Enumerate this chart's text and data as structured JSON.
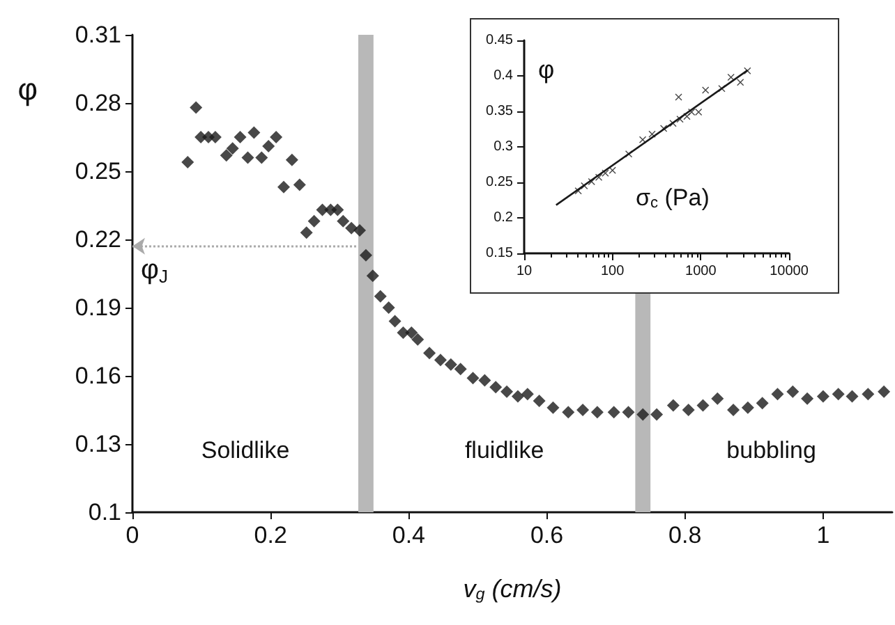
{
  "chart_data": [
    {
      "type": "scatter",
      "xlabel": "v$_{g}$ (cm/s)",
      "ylabel": "φ",
      "color": "#1a1a1a",
      "marker": "diamond",
      "x": [
        0.08,
        0.092,
        0.099,
        0.11,
        0.12,
        0.136,
        0.145,
        0.156,
        0.167,
        0.176,
        0.187,
        0.197,
        0.208,
        0.219,
        0.231,
        0.242,
        0.252,
        0.263,
        0.275,
        0.287,
        0.297,
        0.305,
        0.317,
        0.329,
        0.338,
        0.348,
        0.359,
        0.371,
        0.38,
        0.392,
        0.404,
        0.413,
        0.43,
        0.446,
        0.461,
        0.475,
        0.493,
        0.51,
        0.526,
        0.542,
        0.558,
        0.572,
        0.589,
        0.609,
        0.631,
        0.652,
        0.673,
        0.697,
        0.718,
        0.739,
        0.759,
        0.783,
        0.805,
        0.826,
        0.847,
        0.87,
        0.891,
        0.912,
        0.934,
        0.956,
        0.977,
        1.0,
        1.022,
        1.042,
        1.065,
        1.088
      ],
      "values": [
        0.254,
        0.278,
        0.265,
        0.265,
        0.265,
        0.257,
        0.26,
        0.265,
        0.256,
        0.267,
        0.256,
        0.261,
        0.265,
        0.243,
        0.255,
        0.244,
        0.223,
        0.228,
        0.233,
        0.233,
        0.233,
        0.228,
        0.225,
        0.224,
        0.213,
        0.204,
        0.195,
        0.19,
        0.184,
        0.179,
        0.179,
        0.176,
        0.17,
        0.167,
        0.165,
        0.163,
        0.159,
        0.158,
        0.155,
        0.153,
        0.151,
        0.152,
        0.149,
        0.146,
        0.144,
        0.145,
        0.144,
        0.144,
        0.144,
        0.143,
        0.143,
        0.147,
        0.145,
        0.147,
        0.15,
        0.145,
        0.146,
        0.148,
        0.152,
        0.153,
        0.15,
        0.151,
        0.152,
        0.151,
        0.152,
        0.153
      ],
      "xlim": [
        0,
        1.1
      ],
      "xticks": [
        0,
        0.2,
        0.4,
        0.6,
        0.8,
        1
      ],
      "ylim": [
        0.1,
        0.31
      ],
      "yticks": [
        0.1,
        0.13,
        0.16,
        0.19,
        0.22,
        0.25,
        0.28,
        0.31
      ],
      "bands": [
        {
          "axis": "x",
          "from": 0.327,
          "to": 0.349,
          "color": "#b8b8b8"
        },
        {
          "axis": "x",
          "from": 0.728,
          "to": 0.75,
          "color": "#b8b8b8"
        }
      ],
      "ref_lines": [
        {
          "axis": "y",
          "value": 0.217,
          "label": "φ$_{J}$",
          "color": "#aaaaaa",
          "line_style": "dotted"
        }
      ],
      "annotations": [
        "Solidlike",
        "fluidlike",
        "bubbling"
      ]
    },
    {
      "type": "scatter",
      "xlabel": "σ$_{c}$ (Pa)",
      "ylabel": "φ",
      "log": "x",
      "xlim": [
        10,
        10000
      ],
      "xticks": [
        10,
        100,
        1000,
        10000
      ],
      "ylim": [
        0.15,
        0.45
      ],
      "yticks": [
        0.15,
        0.2,
        0.25,
        0.3,
        0.35,
        0.4,
        0.45
      ],
      "series": [
        {
          "color": "#1a1a1a",
          "marker": "cross",
          "x": [
            41,
            48,
            58,
            70,
            83,
            100,
            153,
            220,
            281,
            380,
            485,
            582,
            697,
            787,
            944,
            561,
            1133,
            1730,
            2200,
            2810,
            3380
          ],
          "values": [
            0.238,
            0.245,
            0.251,
            0.257,
            0.263,
            0.267,
            0.29,
            0.31,
            0.318,
            0.326,
            0.333,
            0.339,
            0.343,
            0.349,
            0.349,
            0.37,
            0.38,
            0.382,
            0.398,
            0.391,
            0.407
          ]
        },
        {
          "type": "line",
          "color": "#1a1a1a",
          "marker": "none",
          "x": [
            23,
            3400
          ],
          "values": [
            0.218,
            0.408
          ]
        }
      ]
    }
  ]
}
